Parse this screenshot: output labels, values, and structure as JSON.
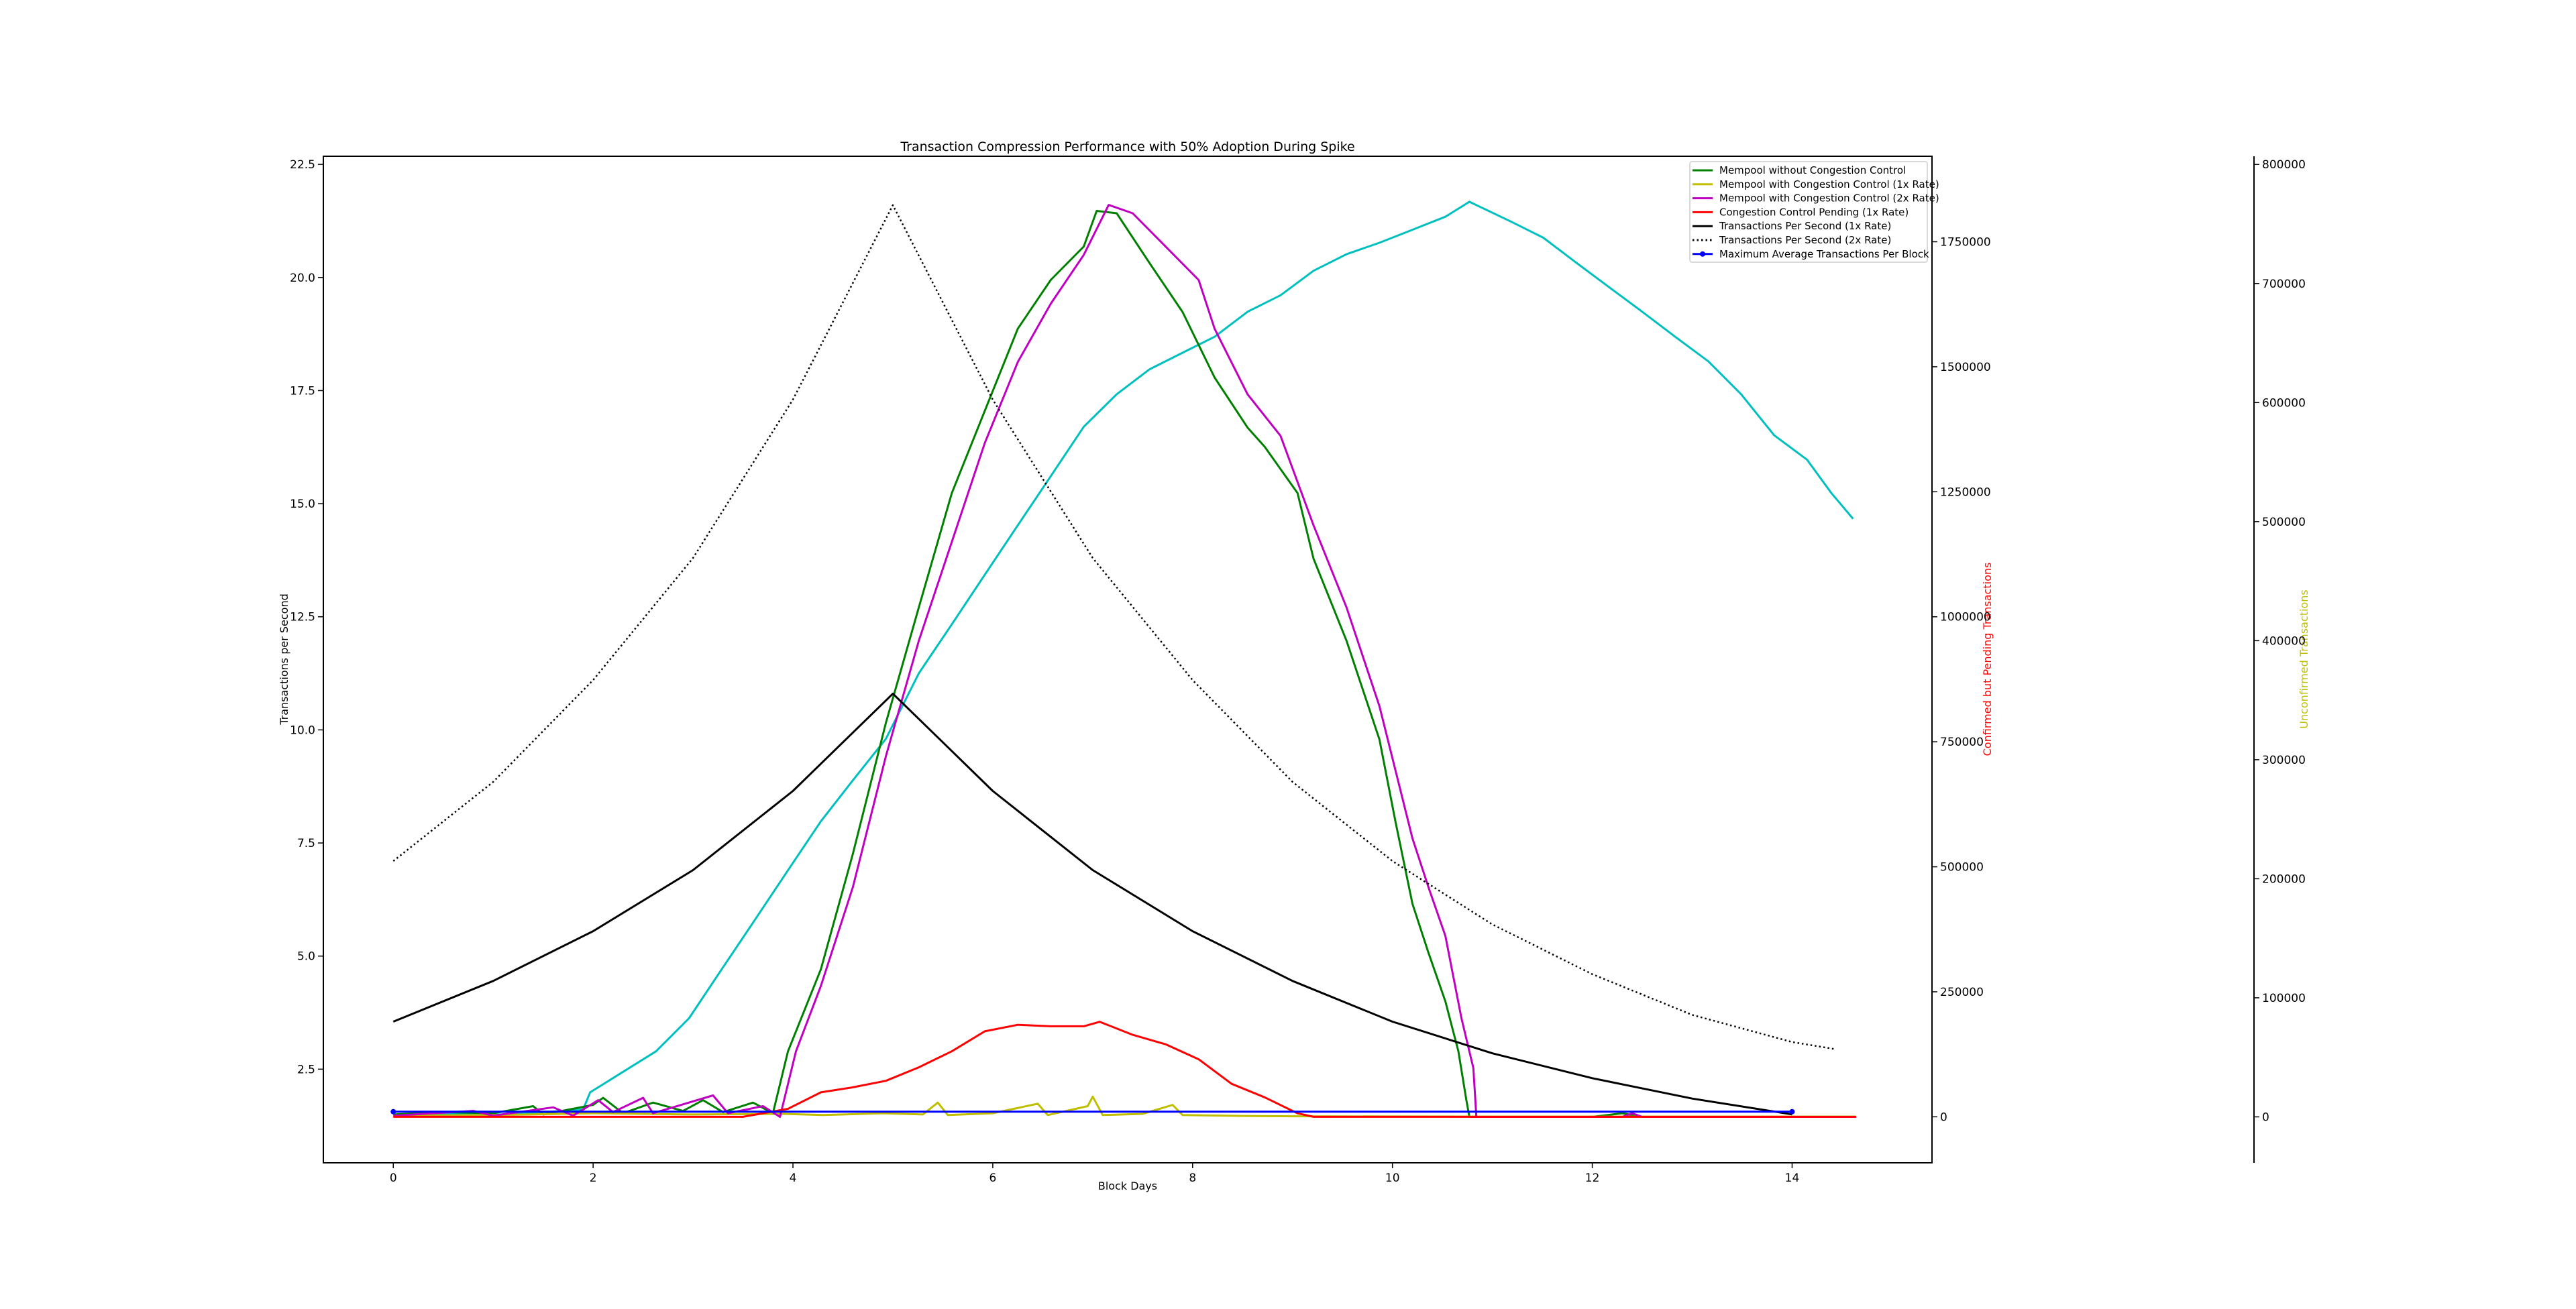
{
  "chart_data": {
    "type": "line",
    "title": "Transaction Compression Performance with 50% Adoption During Spike",
    "xlabel": "Block Days",
    "ylabel": "Transactions per Second",
    "y2label": "Confirmed but Pending Transactions",
    "y3label": "Unconfirmed Transactions",
    "y2label_color": "#ff0000",
    "y3label_color": "#bfbf00",
    "xlim": [
      -0.7,
      15.4
    ],
    "ylim": [
      0.43,
      22.68
    ],
    "y2lim": [
      -92000,
      1921000
    ],
    "y3lim": [
      -38600,
      806900
    ],
    "grid": false,
    "legend_placement": "top-right",
    "x_ticks": [
      "0",
      "2",
      "4",
      "6",
      "8",
      "10",
      "12",
      "14"
    ],
    "y_ticks": [
      "2.5",
      "5.0",
      "7.5",
      "10.0",
      "12.5",
      "15.0",
      "17.5",
      "20.0",
      "22.5"
    ],
    "y2_ticks": [
      "0",
      "250000",
      "500000",
      "750000",
      "1000000",
      "1250000",
      "1500000",
      "1750000"
    ],
    "y3_ticks": [
      "0",
      "100000",
      "200000",
      "300000",
      "400000",
      "500000",
      "600000",
      "700000",
      "800000"
    ],
    "series": [
      {
        "name": "Mempool without Congestion Control",
        "color": "#008000",
        "axis": "y3",
        "style": "solid",
        "points": [
          [
            0,
            2000
          ],
          [
            0.5,
            4000
          ],
          [
            1,
            3000
          ],
          [
            1.4,
            9000
          ],
          [
            1.5,
            2000
          ],
          [
            2,
            10000
          ],
          [
            2.1,
            16000
          ],
          [
            2.3,
            3000
          ],
          [
            2.6,
            12000
          ],
          [
            2.9,
            5000
          ],
          [
            3.1,
            14000
          ],
          [
            3.3,
            4000
          ],
          [
            3.6,
            12000
          ],
          [
            3.8,
            3000
          ],
          [
            3.95,
            55000
          ],
          [
            4.28,
            124000
          ],
          [
            4.6,
            221000
          ],
          [
            4.93,
            331000
          ],
          [
            5.26,
            428000
          ],
          [
            5.59,
            524000
          ],
          [
            5.92,
            593000
          ],
          [
            6.25,
            662000
          ],
          [
            6.58,
            703000
          ],
          [
            6.91,
            731000
          ],
          [
            7.04,
            761000
          ],
          [
            7.24,
            759000
          ],
          [
            7.57,
            717000
          ],
          [
            7.9,
            676000
          ],
          [
            8.22,
            621000
          ],
          [
            8.55,
            579000
          ],
          [
            8.72,
            563000
          ],
          [
            9.05,
            524000
          ],
          [
            9.21,
            469000
          ],
          [
            9.54,
            400000
          ],
          [
            9.87,
            317000
          ],
          [
            10.03,
            248000
          ],
          [
            10.2,
            179000
          ],
          [
            10.36,
            138000
          ],
          [
            10.53,
            97000
          ],
          [
            10.66,
            55000
          ],
          [
            10.74,
            14000
          ],
          [
            10.77,
            0
          ],
          [
            12,
            0
          ],
          [
            12.3,
            3000
          ],
          [
            12.5,
            0
          ],
          [
            14,
            0
          ]
        ]
      },
      {
        "name": "Mempool with Congestion Control (1x Rate)",
        "color": "#bfbf00",
        "axis": "y3",
        "style": "solid",
        "points": [
          [
            0,
            1000
          ],
          [
            1,
            1500
          ],
          [
            2,
            3000
          ],
          [
            3,
            2000
          ],
          [
            3.9,
            2500
          ],
          [
            4.3,
            1500
          ],
          [
            4.9,
            3000
          ],
          [
            5.3,
            2000
          ],
          [
            5.45,
            12000
          ],
          [
            5.55,
            1500
          ],
          [
            6,
            3000
          ],
          [
            6.45,
            11000
          ],
          [
            6.55,
            1500
          ],
          [
            6.95,
            9000
          ],
          [
            7.0,
            17000
          ],
          [
            7.1,
            1500
          ],
          [
            7.5,
            2500
          ],
          [
            7.8,
            10000
          ],
          [
            7.9,
            1500
          ],
          [
            8.5,
            800
          ],
          [
            9,
            500
          ],
          [
            10,
            300
          ],
          [
            11,
            200
          ],
          [
            12,
            200
          ],
          [
            13,
            200
          ],
          [
            14,
            200
          ],
          [
            14.64,
            200
          ]
        ]
      },
      {
        "name": "Mempool with Congestion Control (2x Rate)",
        "color": "#c000c0",
        "axis": "y3",
        "style": "solid",
        "points": [
          [
            0,
            1000
          ],
          [
            0.8,
            5000
          ],
          [
            1,
            1000
          ],
          [
            1.6,
            8000
          ],
          [
            1.8,
            1000
          ],
          [
            2.05,
            14000
          ],
          [
            2.2,
            4000
          ],
          [
            2.5,
            16000
          ],
          [
            2.6,
            3000
          ],
          [
            3.2,
            18000
          ],
          [
            3.35,
            3000
          ],
          [
            3.7,
            9000
          ],
          [
            3.87,
            0
          ],
          [
            4.03,
            55000
          ],
          [
            4.28,
            110000
          ],
          [
            4.6,
            193000
          ],
          [
            4.93,
            303000
          ],
          [
            5.26,
            400000
          ],
          [
            5.59,
            483000
          ],
          [
            5.92,
            566000
          ],
          [
            6.25,
            634000
          ],
          [
            6.58,
            683000
          ],
          [
            6.91,
            724000
          ],
          [
            7.16,
            766000
          ],
          [
            7.4,
            759000
          ],
          [
            7.73,
            731000
          ],
          [
            8.06,
            703000
          ],
          [
            8.22,
            662000
          ],
          [
            8.55,
            607000
          ],
          [
            8.88,
            572000
          ],
          [
            9.21,
            497000
          ],
          [
            9.54,
            428000
          ],
          [
            9.87,
            345000
          ],
          [
            10.2,
            234000
          ],
          [
            10.36,
            193000
          ],
          [
            10.53,
            152000
          ],
          [
            10.69,
            83000
          ],
          [
            10.81,
            41000
          ],
          [
            10.84,
            0
          ],
          [
            12.3,
            0
          ],
          [
            12.4,
            3000
          ],
          [
            12.5,
            0
          ],
          [
            14.64,
            0
          ]
        ]
      },
      {
        "name": "Congestion Control Pending (1x Rate)",
        "color": "#ff0000",
        "axis": "y2",
        "style": "solid",
        "points": [
          [
            0,
            0
          ],
          [
            3.5,
            0
          ],
          [
            3.95,
            16000
          ],
          [
            4.28,
            49000
          ],
          [
            4.6,
            59000
          ],
          [
            4.93,
            72000
          ],
          [
            5.26,
            99000
          ],
          [
            5.59,
            131000
          ],
          [
            5.92,
            171000
          ],
          [
            6.25,
            184000
          ],
          [
            6.58,
            181000
          ],
          [
            6.91,
            181000
          ],
          [
            7.07,
            190000
          ],
          [
            7.4,
            164000
          ],
          [
            7.73,
            145000
          ],
          [
            8.06,
            115000
          ],
          [
            8.39,
            66000
          ],
          [
            8.72,
            39000
          ],
          [
            9.05,
            7000
          ],
          [
            9.21,
            0
          ],
          [
            14.64,
            0
          ]
        ]
      },
      {
        "name": "Transactions Per Second (1x Rate)",
        "color": "#000000",
        "axis": "y",
        "style": "solid",
        "points": [
          [
            0,
            3.55
          ],
          [
            1,
            4.45
          ],
          [
            2,
            5.55
          ],
          [
            3,
            6.9
          ],
          [
            4,
            8.65
          ],
          [
            5,
            10.8
          ],
          [
            6,
            8.65
          ],
          [
            7,
            6.9
          ],
          [
            8,
            5.55
          ],
          [
            9,
            4.45
          ],
          [
            10,
            3.55
          ],
          [
            11,
            2.85
          ],
          [
            12,
            2.3
          ],
          [
            13,
            1.85
          ],
          [
            14,
            1.5
          ]
        ]
      },
      {
        "name": "Transactions Per Second (2x Rate)",
        "color": "#000000",
        "axis": "y",
        "style": "dotted",
        "points": [
          [
            0,
            7.1
          ],
          [
            1,
            8.85
          ],
          [
            2,
            11.1
          ],
          [
            3,
            13.8
          ],
          [
            4,
            17.3
          ],
          [
            5,
            21.6
          ],
          [
            6,
            17.3
          ],
          [
            7,
            13.8
          ],
          [
            8,
            11.1
          ],
          [
            9,
            8.85
          ],
          [
            10,
            7.1
          ],
          [
            11,
            5.7
          ],
          [
            12,
            4.6
          ],
          [
            13,
            3.7
          ],
          [
            14,
            3.1
          ],
          [
            14.44,
            2.94
          ]
        ]
      },
      {
        "name": "Maximum Average Transactions Per Block",
        "color": "#0000ff",
        "axis": "y",
        "style": "marker",
        "points": [
          [
            0,
            1.56
          ],
          [
            14,
            1.56
          ]
        ]
      },
      {
        "color": "#00bfbf",
        "axis": "y2",
        "style": "solid",
        "points": [
          [
            0,
            3000
          ],
          [
            0.5,
            6000
          ],
          [
            1,
            4000
          ],
          [
            1.5,
            9000
          ],
          [
            1.9,
            15000
          ],
          [
            1.97,
            49000
          ],
          [
            2.3,
            90000
          ],
          [
            2.63,
            131000
          ],
          [
            2.96,
            197000
          ],
          [
            3.29,
            296000
          ],
          [
            3.62,
            394000
          ],
          [
            3.95,
            493000
          ],
          [
            4.28,
            591000
          ],
          [
            4.6,
            673000
          ],
          [
            4.93,
            756000
          ],
          [
            5.26,
            887000
          ],
          [
            5.59,
            985000
          ],
          [
            5.92,
            1084000
          ],
          [
            6.25,
            1183000
          ],
          [
            6.58,
            1281000
          ],
          [
            6.91,
            1380000
          ],
          [
            7.24,
            1445000
          ],
          [
            7.57,
            1495000
          ],
          [
            7.9,
            1528000
          ],
          [
            8.22,
            1560000
          ],
          [
            8.55,
            1610000
          ],
          [
            8.88,
            1643000
          ],
          [
            9.21,
            1692000
          ],
          [
            9.54,
            1725000
          ],
          [
            9.87,
            1748000
          ],
          [
            10.2,
            1774000
          ],
          [
            10.53,
            1800000
          ],
          [
            10.77,
            1830000
          ],
          [
            11.19,
            1790000
          ],
          [
            11.51,
            1758000
          ],
          [
            11.84,
            1708000
          ],
          [
            12.17,
            1659000
          ],
          [
            12.5,
            1610000
          ],
          [
            12.83,
            1560000
          ],
          [
            13.16,
            1511000
          ],
          [
            13.49,
            1445000
          ],
          [
            13.82,
            1363000
          ],
          [
            14.15,
            1314000
          ],
          [
            14.39,
            1248000
          ],
          [
            14.61,
            1196000
          ]
        ]
      }
    ]
  }
}
